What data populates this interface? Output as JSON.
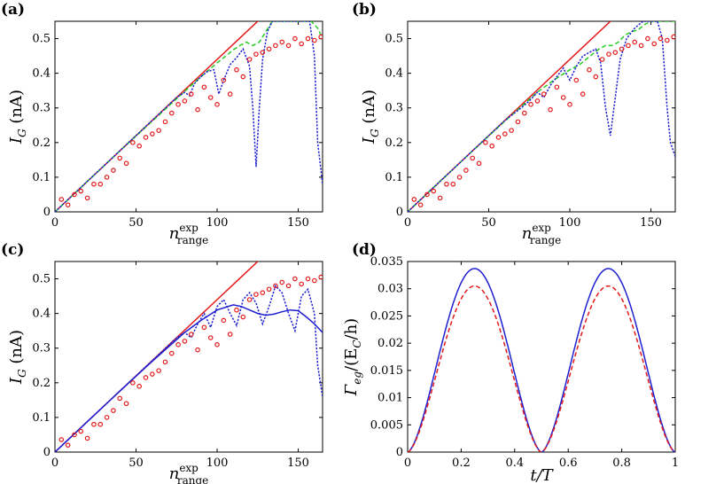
{
  "chart_data": [
    {
      "panel_label": "(a)",
      "type": "line",
      "xlabel": "n",
      "xlabel_sub": "range",
      "xlabel_sup": "exp",
      "ylabel": "I",
      "ylabel_sub": "G",
      "ylabel_unit": "(nA)",
      "xlim": [
        0,
        165
      ],
      "ylim": [
        0,
        0.55
      ],
      "xticks": [
        "0",
        "50",
        "100",
        "150"
      ],
      "yticks": [
        "0",
        "0.1",
        "0.2",
        "0.3",
        "0.4",
        "0.5"
      ],
      "series": [
        {
          "name": "linear",
          "style": "solid",
          "color": "#e41a1c",
          "slope": 0.0044
        },
        {
          "name": "green-dashed",
          "style": "dashed",
          "color": "#22cc22",
          "x": [
            0,
            20,
            40,
            60,
            80,
            90,
            100,
            106,
            110,
            114,
            118,
            122,
            126,
            130,
            134,
            138,
            142,
            146,
            150,
            154,
            158,
            162,
            165
          ],
          "y": [
            0,
            0.088,
            0.176,
            0.262,
            0.348,
            0.39,
            0.43,
            0.452,
            0.468,
            0.48,
            0.49,
            0.48,
            0.49,
            0.52,
            0.55,
            0.55,
            0.55,
            0.55,
            0.55,
            0.55,
            0.55,
            0.53,
            0.5
          ]
        },
        {
          "name": "blue-dotted",
          "style": "dotted",
          "color": "#1f1fcf",
          "x": [
            0,
            20,
            40,
            60,
            75,
            80,
            83,
            86,
            90,
            94,
            98,
            101,
            104,
            108,
            112,
            116,
            120,
            122,
            124,
            126,
            128,
            131,
            134,
            138,
            142,
            146,
            150,
            154,
            157,
            160,
            162,
            165
          ],
          "y": [
            0,
            0.088,
            0.176,
            0.264,
            0.33,
            0.345,
            0.335,
            0.37,
            0.39,
            0.405,
            0.41,
            0.34,
            0.38,
            0.425,
            0.445,
            0.47,
            0.42,
            0.3,
            0.13,
            0.3,
            0.44,
            0.52,
            0.55,
            0.55,
            0.55,
            0.55,
            0.55,
            0.55,
            0.55,
            0.45,
            0.2,
            0.08
          ]
        },
        {
          "name": "experiment",
          "style": "circles",
          "color": "#e41a1c",
          "x": [
            4,
            8,
            12,
            16,
            20,
            24,
            28,
            32,
            36,
            40,
            44,
            48,
            52,
            56,
            60,
            64,
            68,
            72,
            76,
            80,
            84,
            88,
            92,
            96,
            100,
            104,
            108,
            112,
            116,
            120,
            124,
            128,
            132,
            136,
            140,
            144,
            148,
            152,
            156,
            160,
            164
          ],
          "y": [
            0.036,
            0.02,
            0.05,
            0.06,
            0.04,
            0.08,
            0.08,
            0.1,
            0.12,
            0.155,
            0.14,
            0.2,
            0.19,
            0.215,
            0.225,
            0.235,
            0.26,
            0.285,
            0.31,
            0.32,
            0.34,
            0.295,
            0.36,
            0.33,
            0.31,
            0.38,
            0.34,
            0.41,
            0.39,
            0.44,
            0.455,
            0.46,
            0.47,
            0.48,
            0.49,
            0.48,
            0.5,
            0.485,
            0.5,
            0.495,
            0.505
          ]
        }
      ]
    },
    {
      "panel_label": "(b)",
      "type": "line",
      "xlabel": "n",
      "xlabel_sub": "range",
      "xlabel_sup": "exp",
      "ylabel": "I",
      "ylabel_sub": "G",
      "ylabel_unit": "(nA)",
      "xlim": [
        0,
        165
      ],
      "ylim": [
        0,
        0.55
      ],
      "xticks": [
        "0",
        "50",
        "100",
        "150"
      ],
      "yticks": [
        "0",
        "0.1",
        "0.2",
        "0.3",
        "0.4",
        "0.5"
      ],
      "series": [
        {
          "name": "linear",
          "style": "solid",
          "color": "#e41a1c",
          "slope": 0.0044
        },
        {
          "name": "green-dashed",
          "style": "dashed",
          "color": "#22cc22",
          "x": [
            0,
            20,
            40,
            60,
            80,
            90,
            100,
            106,
            110,
            114,
            118,
            122,
            126,
            130,
            134,
            138,
            142,
            146,
            150,
            155,
            160,
            165
          ],
          "y": [
            0,
            0.088,
            0.176,
            0.262,
            0.345,
            0.38,
            0.41,
            0.425,
            0.44,
            0.455,
            0.47,
            0.48,
            0.48,
            0.49,
            0.51,
            0.52,
            0.525,
            0.54,
            0.55,
            0.55,
            0.55,
            0.55
          ]
        },
        {
          "name": "blue-dotted",
          "style": "dotted",
          "color": "#1f1fcf",
          "x": [
            0,
            20,
            40,
            60,
            70,
            75,
            80,
            84,
            88,
            92,
            96,
            100,
            104,
            108,
            112,
            116,
            119,
            122,
            125,
            128,
            131,
            135,
            140,
            145,
            150,
            154,
            157,
            160,
            162,
            165
          ],
          "y": [
            0,
            0.088,
            0.176,
            0.264,
            0.3,
            0.32,
            0.345,
            0.33,
            0.365,
            0.39,
            0.415,
            0.38,
            0.42,
            0.45,
            0.46,
            0.47,
            0.43,
            0.3,
            0.22,
            0.33,
            0.44,
            0.5,
            0.53,
            0.55,
            0.55,
            0.55,
            0.5,
            0.3,
            0.2,
            0.16
          ]
        },
        {
          "name": "experiment",
          "style": "circles",
          "color": "#e41a1c",
          "x": [
            4,
            8,
            12,
            16,
            20,
            24,
            28,
            32,
            36,
            40,
            44,
            48,
            52,
            56,
            60,
            64,
            68,
            72,
            76,
            80,
            84,
            88,
            92,
            96,
            100,
            104,
            108,
            112,
            116,
            120,
            124,
            128,
            132,
            136,
            140,
            144,
            148,
            152,
            156,
            160,
            164
          ],
          "y": [
            0.036,
            0.02,
            0.05,
            0.06,
            0.04,
            0.08,
            0.08,
            0.1,
            0.12,
            0.155,
            0.14,
            0.2,
            0.19,
            0.215,
            0.225,
            0.235,
            0.26,
            0.285,
            0.31,
            0.32,
            0.34,
            0.295,
            0.36,
            0.33,
            0.31,
            0.38,
            0.34,
            0.41,
            0.39,
            0.44,
            0.455,
            0.46,
            0.47,
            0.48,
            0.49,
            0.48,
            0.5,
            0.485,
            0.5,
            0.495,
            0.505
          ]
        }
      ]
    },
    {
      "panel_label": "(c)",
      "type": "line",
      "xlabel": "n",
      "xlabel_sub": "range",
      "xlabel_sup": "exp",
      "ylabel": "I",
      "ylabel_sub": "G",
      "ylabel_unit": "(nA)",
      "xlim": [
        0,
        165
      ],
      "ylim": [
        0,
        0.55
      ],
      "xticks": [
        "0",
        "50",
        "100",
        "150"
      ],
      "yticks": [
        "0",
        "0.1",
        "0.2",
        "0.3",
        "0.4",
        "0.5"
      ],
      "series": [
        {
          "name": "linear",
          "style": "solid",
          "color": "#e41a1c",
          "slope": 0.0044
        },
        {
          "name": "blue-solid",
          "style": "solid",
          "color": "#1f1fcf",
          "x": [
            0,
            20,
            40,
            60,
            80,
            90,
            100,
            110,
            115,
            120,
            125,
            130,
            135,
            140,
            145,
            150,
            155,
            160,
            165
          ],
          "y": [
            0,
            0.088,
            0.176,
            0.262,
            0.345,
            0.38,
            0.41,
            0.425,
            0.42,
            0.41,
            0.4,
            0.395,
            0.398,
            0.405,
            0.41,
            0.408,
            0.39,
            0.37,
            0.345
          ]
        },
        {
          "name": "blue-dotted",
          "style": "dotted",
          "color": "#1f1fcf",
          "x": [
            0,
            20,
            40,
            60,
            75,
            80,
            84,
            88,
            92,
            96,
            100,
            104,
            108,
            112,
            116,
            120,
            124,
            128,
            132,
            136,
            140,
            144,
            148,
            152,
            156,
            160,
            162,
            165
          ],
          "y": [
            0,
            0.088,
            0.176,
            0.264,
            0.33,
            0.345,
            0.33,
            0.37,
            0.4,
            0.36,
            0.42,
            0.44,
            0.4,
            0.365,
            0.44,
            0.46,
            0.43,
            0.37,
            0.42,
            0.48,
            0.46,
            0.4,
            0.35,
            0.45,
            0.47,
            0.4,
            0.25,
            0.16
          ]
        },
        {
          "name": "experiment",
          "style": "circles",
          "color": "#e41a1c",
          "x": [
            4,
            8,
            12,
            16,
            20,
            24,
            28,
            32,
            36,
            40,
            44,
            48,
            52,
            56,
            60,
            64,
            68,
            72,
            76,
            80,
            84,
            88,
            92,
            96,
            100,
            104,
            108,
            112,
            116,
            120,
            124,
            128,
            132,
            136,
            140,
            144,
            148,
            152,
            156,
            160,
            164
          ],
          "y": [
            0.036,
            0.02,
            0.05,
            0.06,
            0.04,
            0.08,
            0.08,
            0.1,
            0.12,
            0.155,
            0.14,
            0.2,
            0.19,
            0.215,
            0.225,
            0.235,
            0.26,
            0.285,
            0.31,
            0.32,
            0.34,
            0.295,
            0.36,
            0.33,
            0.31,
            0.38,
            0.34,
            0.41,
            0.39,
            0.44,
            0.455,
            0.46,
            0.47,
            0.48,
            0.49,
            0.48,
            0.5,
            0.485,
            0.5,
            0.495,
            0.505
          ]
        }
      ]
    },
    {
      "panel_label": "(d)",
      "type": "line",
      "xlabel": "t/T",
      "ylabel": "Γ",
      "ylabel_sub": "eg",
      "ylabel_unit": "/(E",
      "ylabel_unit_sub": "C",
      "ylabel_unit_end": "/h)",
      "xlim": [
        0,
        1
      ],
      "ylim": [
        0,
        0.035
      ],
      "xticks": [
        "0",
        "0.2",
        "0.4",
        "0.6",
        "0.8",
        "1"
      ],
      "yticks": [
        "0",
        "0.005",
        "0.01",
        "0.015",
        "0.02",
        "0.025",
        "0.03",
        "0.035"
      ],
      "series": [
        {
          "name": "blue-solid",
          "style": "solid",
          "color": "#1f1fcf",
          "peak": 0.0337,
          "peaks_at": [
            0.25,
            0.75
          ]
        },
        {
          "name": "red-dashed",
          "style": "dashed",
          "color": "#e41a1c",
          "peak": 0.0305,
          "peaks_at": [
            0.25,
            0.75
          ]
        }
      ]
    }
  ]
}
